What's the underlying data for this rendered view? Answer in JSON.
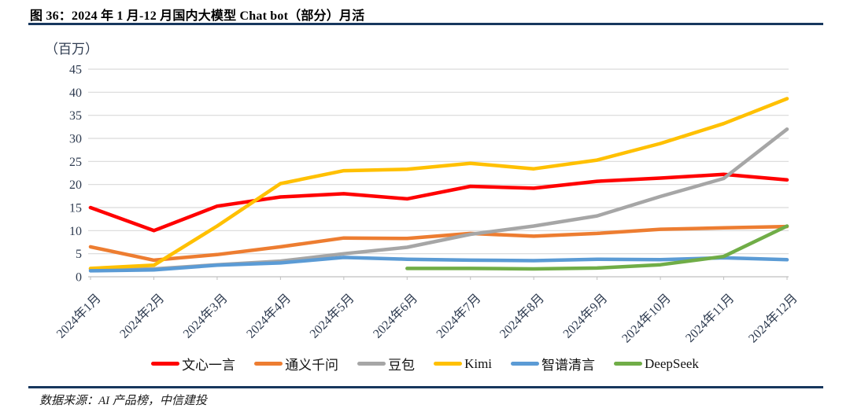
{
  "figure": {
    "title": "图 36：2024 年 1 月-12 月国内大模型 Chat bot（部分）月活",
    "source": "数据来源：AI 产品榜，中信建投",
    "accent_color": "#17375E"
  },
  "chart_data": {
    "type": "line",
    "title": "2024年1月-12月国内大模型Chat bot（部分）月活",
    "ylabel": "（百万）",
    "xlabel": "",
    "ylim": [
      0,
      45
    ],
    "yticks": [
      0,
      5,
      10,
      15,
      20,
      25,
      30,
      35,
      40,
      45
    ],
    "grid": true,
    "legend_position": "bottom",
    "gridline_color": "#d9d9d9",
    "axis_line_color": "#bfbfbf",
    "axis_text_color": "#2e3b50",
    "categories": [
      "2024年1月",
      "2024年2月",
      "2024年3月",
      "2024年4月",
      "2024年5月",
      "2024年6月",
      "2024年7月",
      "2024年8月",
      "2024年9月",
      "2024年10月",
      "2024年11月",
      "2024年12月"
    ],
    "series": [
      {
        "name": "文心一言",
        "slug": "wenxinyiyan",
        "color": "#FF0000",
        "values": [
          15,
          10,
          15.3,
          17.3,
          18,
          16.9,
          19.6,
          19.2,
          20.7,
          21.4,
          22.2,
          21
        ]
      },
      {
        "name": "通义千问",
        "slug": "tongyiqianwen",
        "color": "#ED7D31",
        "values": [
          6.5,
          3.6,
          4.8,
          6.5,
          8.4,
          8.3,
          9.4,
          8.8,
          9.4,
          10.3,
          10.6,
          10.9
        ]
      },
      {
        "name": "豆包",
        "slug": "doubao",
        "color": "#A6A6A6",
        "values": [
          1.7,
          1.7,
          2.6,
          3.4,
          5,
          6.4,
          9.2,
          11,
          13.2,
          17.4,
          21.3,
          32
        ]
      },
      {
        "name": "Kimi",
        "slug": "kimi",
        "color": "#FFC000",
        "values": [
          1.8,
          2.5,
          11,
          20.2,
          23,
          23.3,
          24.6,
          23.4,
          25.3,
          28.9,
          33.2,
          38.6
        ]
      },
      {
        "name": "智谱清言",
        "slug": "zhipuqingyan",
        "color": "#5B9BD5",
        "values": [
          1.3,
          1.5,
          2.5,
          3,
          4.2,
          3.8,
          3.6,
          3.5,
          3.8,
          3.7,
          4.1,
          3.7
        ]
      },
      {
        "name": "DeepSeek",
        "slug": "deepseek",
        "color": "#70AD47",
        "values": [
          null,
          null,
          null,
          null,
          null,
          1.8,
          1.8,
          1.7,
          1.9,
          2.6,
          4.4,
          11
        ]
      }
    ]
  }
}
